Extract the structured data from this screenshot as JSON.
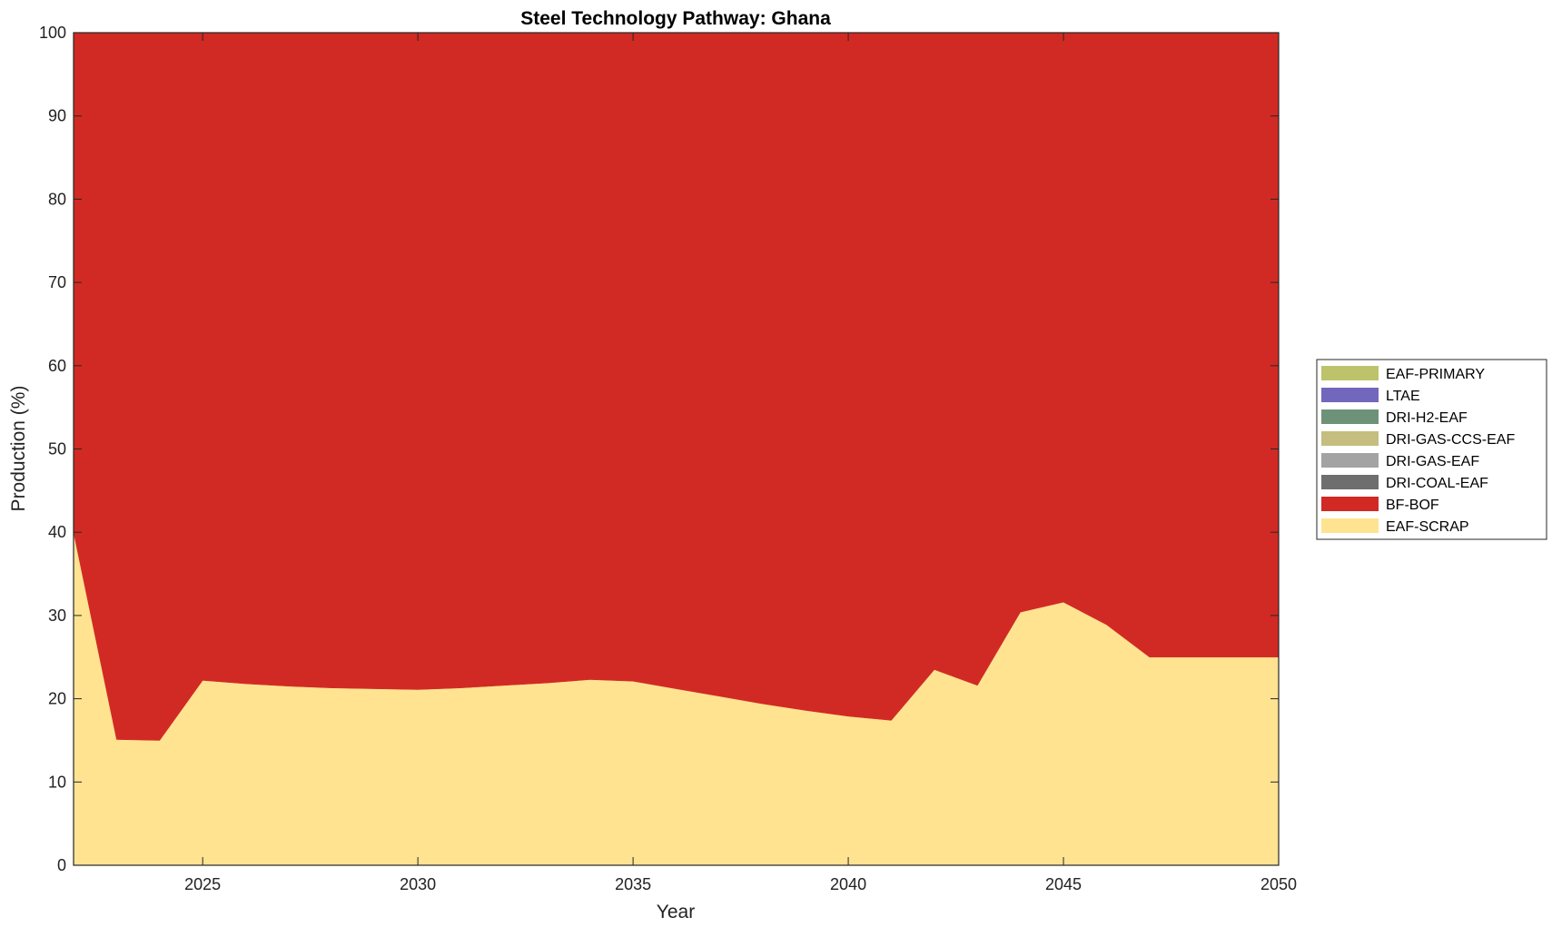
{
  "chart_data": {
    "type": "area",
    "stacked": true,
    "title": "Steel Technology Pathway: Ghana",
    "xlabel": "Year",
    "ylabel": "Production (%)",
    "xlim": [
      2022,
      2050
    ],
    "ylim": [
      0,
      100
    ],
    "x_ticks": [
      2025,
      2030,
      2035,
      2040,
      2045,
      2050
    ],
    "y_ticks": [
      0,
      10,
      20,
      30,
      40,
      50,
      60,
      70,
      80,
      90,
      100
    ],
    "grid": false,
    "legend_position": "right",
    "x": [
      2022,
      2023,
      2024,
      2025,
      2026,
      2027,
      2028,
      2029,
      2030,
      2031,
      2032,
      2033,
      2034,
      2035,
      2036,
      2037,
      2038,
      2039,
      2040,
      2041,
      2042,
      2043,
      2044,
      2045,
      2046,
      2047,
      2048,
      2049,
      2050
    ],
    "series": [
      {
        "name": "EAF-SCRAP",
        "color": "#FFE391",
        "values": [
          40.0,
          15.1,
          15.0,
          22.2,
          21.8,
          21.5,
          21.3,
          21.2,
          21.1,
          21.3,
          21.6,
          21.9,
          22.3,
          22.1,
          21.2,
          20.3,
          19.4,
          18.6,
          17.9,
          17.4,
          23.5,
          21.6,
          30.4,
          31.6,
          28.9,
          25.0,
          25.0,
          25.0,
          25.0
        ]
      },
      {
        "name": "BF-BOF",
        "color": "#D12A24",
        "values": [
          60.0,
          84.9,
          85.0,
          77.8,
          78.2,
          78.5,
          78.7,
          78.8,
          78.9,
          78.7,
          78.4,
          78.1,
          77.7,
          77.9,
          78.8,
          79.7,
          80.6,
          81.4,
          82.1,
          82.6,
          76.5,
          78.4,
          69.6,
          68.4,
          71.1,
          75.0,
          75.0,
          75.0,
          75.0
        ]
      },
      {
        "name": "DRI-COAL-EAF",
        "color": "#6E6E6E",
        "values": [
          0,
          0,
          0,
          0,
          0,
          0,
          0,
          0,
          0,
          0,
          0,
          0,
          0,
          0,
          0,
          0,
          0,
          0,
          0,
          0,
          0,
          0,
          0,
          0,
          0,
          0,
          0,
          0,
          0
        ]
      },
      {
        "name": "DRI-GAS-EAF",
        "color": "#A3A3A3",
        "values": [
          0,
          0,
          0,
          0,
          0,
          0,
          0,
          0,
          0,
          0,
          0,
          0,
          0,
          0,
          0,
          0,
          0,
          0,
          0,
          0,
          0,
          0,
          0,
          0,
          0,
          0,
          0,
          0,
          0
        ]
      },
      {
        "name": "DRI-GAS-CCS-EAF",
        "color": "#C5BE7E",
        "values": [
          0,
          0,
          0,
          0,
          0,
          0,
          0,
          0,
          0,
          0,
          0,
          0,
          0,
          0,
          0,
          0,
          0,
          0,
          0,
          0,
          0,
          0,
          0,
          0,
          0,
          0,
          0,
          0,
          0
        ]
      },
      {
        "name": "DRI-H2-EAF",
        "color": "#6E9278",
        "values": [
          0,
          0,
          0,
          0,
          0,
          0,
          0,
          0,
          0,
          0,
          0,
          0,
          0,
          0,
          0,
          0,
          0,
          0,
          0,
          0,
          0,
          0,
          0,
          0,
          0,
          0,
          0,
          0,
          0
        ]
      },
      {
        "name": "LTAE",
        "color": "#7167BC",
        "values": [
          0,
          0,
          0,
          0,
          0,
          0,
          0,
          0,
          0,
          0,
          0,
          0,
          0,
          0,
          0,
          0,
          0,
          0,
          0,
          0,
          0,
          0,
          0,
          0,
          0,
          0,
          0,
          0,
          0
        ]
      },
      {
        "name": "EAF-PRIMARY",
        "color": "#BCC36A",
        "values": [
          0,
          0,
          0,
          0,
          0,
          0,
          0,
          0,
          0,
          0,
          0,
          0,
          0,
          0,
          0,
          0,
          0,
          0,
          0,
          0,
          0,
          0,
          0,
          0,
          0,
          0,
          0,
          0,
          0
        ]
      }
    ],
    "legend_order": [
      "EAF-PRIMARY",
      "LTAE",
      "DRI-H2-EAF",
      "DRI-GAS-CCS-EAF",
      "DRI-GAS-EAF",
      "DRI-COAL-EAF",
      "BF-BOF",
      "EAF-SCRAP"
    ]
  }
}
